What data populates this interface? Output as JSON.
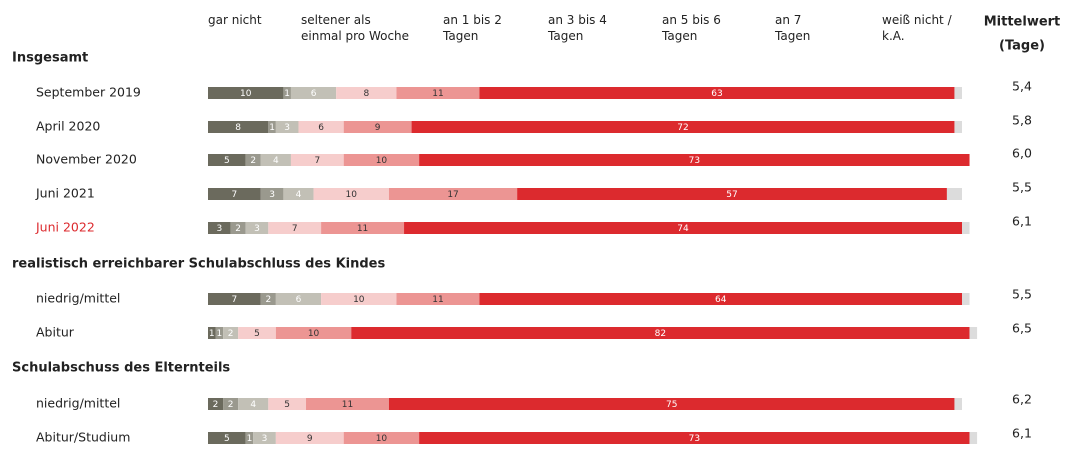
{
  "chart_data": {
    "type": "stacked_bar_horizontal",
    "groups": [
      {
        "label": "Insgesamt",
        "rows": 5
      },
      {
        "label": "realistisch erreichbarer Schulabschluss des Kindes",
        "rows": 2
      },
      {
        "label": "Schulabschuss des Elternteils",
        "rows": 2
      }
    ],
    "categories": [
      "September 2019",
      "April 2020",
      "November 2020",
      "Juni 2021",
      "Juni 2022",
      "niedrig/mittel",
      "Abitur",
      "niedrig/mittel",
      "Abitur/Studium"
    ],
    "category_colors": [
      "#222222",
      "#222222",
      "#222222",
      "#222222",
      "#dc2a2e",
      "#222222",
      "#222222",
      "#222222",
      "#222222"
    ],
    "series": [
      {
        "name": "gar nicht",
        "color": "#6b6a5d",
        "label_color": "#ffffff",
        "values": [
          10,
          8,
          5,
          7,
          3,
          7,
          1,
          2,
          5
        ]
      },
      {
        "name": "seltener als einmal pro Woche",
        "color": "#9a998e",
        "label_color": "#ffffff",
        "values": [
          1,
          1,
          2,
          3,
          2,
          2,
          1,
          2,
          1
        ]
      },
      {
        "name": "an 1 bis 2 Tagen",
        "color": "#c2c0b6",
        "label_color": "#ffffff",
        "values": [
          6,
          3,
          4,
          4,
          3,
          6,
          2,
          4,
          3
        ]
      },
      {
        "name": "an 3 bis 4 Tagen",
        "color": "#f6cdcc",
        "label_color": "#333333",
        "values": [
          8,
          6,
          7,
          10,
          7,
          10,
          5,
          5,
          9
        ]
      },
      {
        "name": "an 5 bis 6 Tagen",
        "color": "#ec9593",
        "label_color": "#333333",
        "values": [
          11,
          9,
          10,
          17,
          11,
          11,
          10,
          11,
          10
        ]
      },
      {
        "name": "an 7 Tagen",
        "color": "#dc2a2e",
        "label_color": "#ffffff",
        "values": [
          63,
          72,
          73,
          57,
          74,
          64,
          82,
          75,
          73
        ]
      },
      {
        "name": "weiß nicht / k.A.",
        "color": "#dcdcdc",
        "show_labels": false,
        "values": [
          1,
          1,
          0,
          2,
          1,
          1,
          1,
          1,
          1
        ]
      }
    ],
    "mean": {
      "title": [
        "Mittelwert",
        "(Tage)"
      ],
      "values": [
        5.4,
        5.8,
        6.0,
        5.5,
        6.1,
        5.5,
        6.5,
        6.2,
        6.1
      ],
      "value_labels": [
        "5,4",
        "5,8",
        "6,0",
        "5,5",
        "6,1",
        "5,5",
        "6,5",
        "6,2",
        "6,1"
      ]
    }
  }
}
